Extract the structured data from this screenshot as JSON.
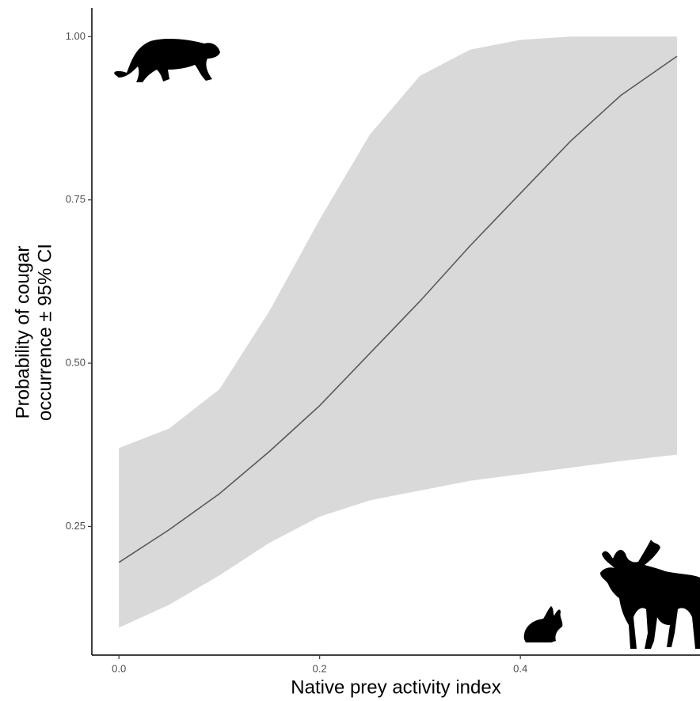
{
  "chart_data": {
    "type": "line",
    "xlabel": "Native prey activity index",
    "ylabel": [
      "Probability of cougar",
      "occurrence ± 95% CI"
    ],
    "x": [
      0,
      0.05,
      0.1,
      0.15,
      0.2,
      0.25,
      0.3,
      0.35,
      0.4,
      0.45,
      0.5,
      0.556
    ],
    "values": [
      0.195,
      0.245,
      0.3,
      0.365,
      0.435,
      0.515,
      0.595,
      0.68,
      0.76,
      0.84,
      0.91,
      0.97
    ],
    "lower": [
      0.095,
      0.13,
      0.175,
      0.225,
      0.265,
      0.29,
      0.305,
      0.32,
      0.33,
      0.34,
      0.35,
      0.36
    ],
    "upper": [
      0.37,
      0.4,
      0.46,
      0.58,
      0.72,
      0.85,
      0.94,
      0.98,
      0.995,
      1.0,
      1.0,
      1.0
    ],
    "color": "#595959",
    "band_color": "#d9d9d9",
    "xlim": [
      -0.027,
      0.579
    ],
    "ylim": [
      0.053,
      1.044
    ],
    "xticks": [
      {
        "value": 0,
        "label": "0.0"
      },
      0.2,
      0.4
    ],
    "yticks": [
      0.25,
      {
        "value": 0.5,
        "label": "0.50"
      },
      0.75,
      {
        "value": 1,
        "label": "1.00"
      }
    ]
  }
}
